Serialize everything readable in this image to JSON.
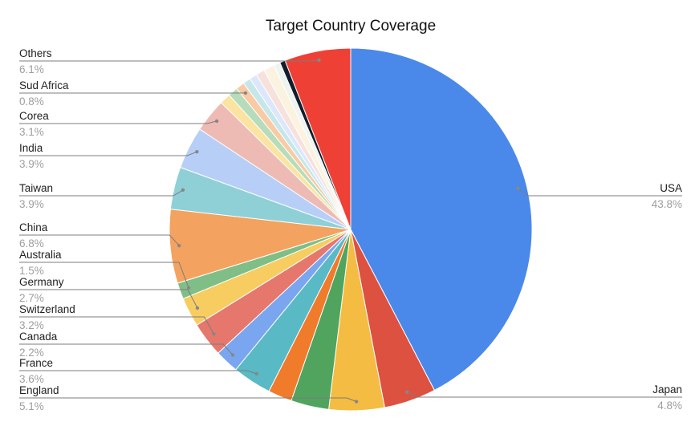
{
  "chart_data": {
    "type": "pie",
    "title": "Target Country Coverage",
    "start_angle_deg": 0,
    "direction": "clockwise",
    "legend": "none",
    "slices": [
      {
        "label": "USA",
        "value": 43.8,
        "display": "43.8%",
        "color": "#4a89ea"
      },
      {
        "label": "Japan",
        "value": 4.8,
        "display": "4.8%",
        "color": "#dd5140"
      },
      {
        "label": "England",
        "value": 5.1,
        "display": "5.1%",
        "color": "#f4bc42"
      },
      {
        "label": "",
        "value": 3.5,
        "display": "",
        "color": "#51a45e"
      },
      {
        "label": "",
        "value": 2.2,
        "display": "",
        "color": "#f07b2b"
      },
      {
        "label": "France",
        "value": 3.6,
        "display": "3.6%",
        "color": "#59b9c4"
      },
      {
        "label": "Canada",
        "value": 2.2,
        "display": "2.2%",
        "color": "#7aa5ef"
      },
      {
        "label": "Switzerland",
        "value": 3.2,
        "display": "3.2%",
        "color": "#e5776c"
      },
      {
        "label": "Germany",
        "value": 2.7,
        "display": "2.7%",
        "color": "#f7cd61"
      },
      {
        "label": "Australia",
        "value": 1.5,
        "display": "1.5%",
        "color": "#7fbe86"
      },
      {
        "label": "China",
        "value": 6.8,
        "display": "6.8%",
        "color": "#f3a35f"
      },
      {
        "label": "Taiwan",
        "value": 3.9,
        "display": "3.9%",
        "color": "#8ed0d6"
      },
      {
        "label": "India",
        "value": 3.9,
        "display": "3.9%",
        "color": "#b7cff6"
      },
      {
        "label": "Corea",
        "value": 3.1,
        "display": "3.1%",
        "color": "#eebbb4"
      },
      {
        "label": "",
        "value": 1.0,
        "display": "",
        "color": "#fbe3a0"
      },
      {
        "label": "",
        "value": 0.9,
        "display": "",
        "color": "#b6dcbb"
      },
      {
        "label": "Sud Africa",
        "value": 0.8,
        "display": "0.8%",
        "color": "#f8cba4"
      },
      {
        "label": "",
        "value": 0.7,
        "display": "",
        "color": "#c6e7ea"
      },
      {
        "label": "",
        "value": 0.7,
        "display": "",
        "color": "#dde7fb"
      },
      {
        "label": "",
        "value": 0.8,
        "display": "",
        "color": "#f7e1dd"
      },
      {
        "label": "",
        "value": 1.0,
        "display": "",
        "color": "#fbf3e0"
      },
      {
        "label": "",
        "value": 0.6,
        "display": "",
        "color": "#eef4ef"
      },
      {
        "label": "",
        "value": 0.5,
        "display": "",
        "color": "#141d2b"
      },
      {
        "label": "Others",
        "value": 6.1,
        "display": "6.1%",
        "color": "#ef4036"
      }
    ]
  }
}
